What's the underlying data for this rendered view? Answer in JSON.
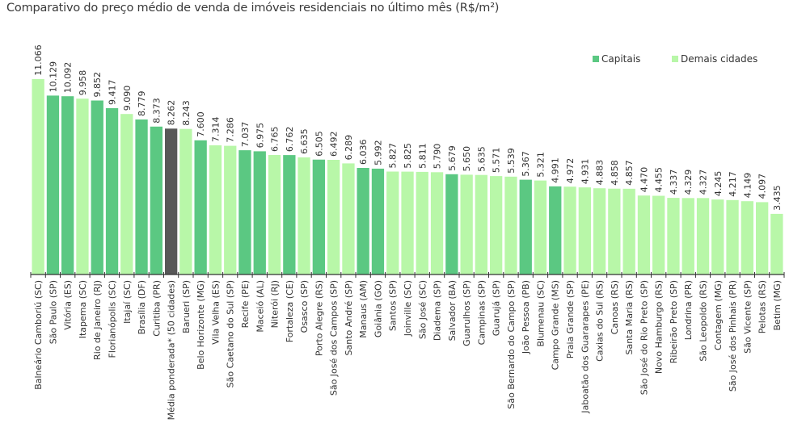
{
  "colors": {
    "capital": "#5bc882",
    "other": "#b8f7a8",
    "average": "#585858",
    "axis": "#333333",
    "text": "#333333"
  },
  "chart_data": {
    "type": "bar",
    "title": "Comparativo do preço médio de venda de imóveis residenciais no último mês (R$/m²)",
    "xlabel": "",
    "ylabel": "",
    "ylim": [
      0,
      12000
    ],
    "grid": false,
    "legend_position": "top-right",
    "legend": [
      {
        "key": "capital",
        "label": "Capitais"
      },
      {
        "key": "other",
        "label": "Demais cidades"
      }
    ],
    "bars": [
      {
        "label": "Balneário Camboriú (SC)",
        "value": 11066,
        "display": "11.066",
        "group": "other"
      },
      {
        "label": "São Paulo (SP)",
        "value": 10129,
        "display": "10.129",
        "group": "capital"
      },
      {
        "label": "Vitória (ES)",
        "value": 10092,
        "display": "10.092",
        "group": "capital"
      },
      {
        "label": "Itapema (SC)",
        "value": 9958,
        "display": "9.958",
        "group": "other"
      },
      {
        "label": "Rio de Janeiro (RJ)",
        "value": 9852,
        "display": "9.852",
        "group": "capital"
      },
      {
        "label": "Florianópolis (SC)",
        "value": 9417,
        "display": "9.417",
        "group": "capital"
      },
      {
        "label": "Itajaí (SC)",
        "value": 9090,
        "display": "9.090",
        "group": "other"
      },
      {
        "label": "Brasília (DF)",
        "value": 8779,
        "display": "8.779",
        "group": "capital"
      },
      {
        "label": "Curitiba (PR)",
        "value": 8373,
        "display": "8.373",
        "group": "capital"
      },
      {
        "label": "Média ponderada* (50 cidades)",
        "value": 8262,
        "display": "8.262",
        "group": "average"
      },
      {
        "label": "Barueri (SP)",
        "value": 8243,
        "display": "8.243",
        "group": "other"
      },
      {
        "label": "Belo Horizonte (MG)",
        "value": 7600,
        "display": "7.600",
        "group": "capital"
      },
      {
        "label": "Vila Velha (ES)",
        "value": 7314,
        "display": "7.314",
        "group": "other"
      },
      {
        "label": "São Caetano do Sul (SP)",
        "value": 7286,
        "display": "7.286",
        "group": "other"
      },
      {
        "label": "Recife (PE)",
        "value": 7037,
        "display": "7.037",
        "group": "capital"
      },
      {
        "label": "Maceió (AL)",
        "value": 6975,
        "display": "6.975",
        "group": "capital"
      },
      {
        "label": "Niterói (RJ)",
        "value": 6765,
        "display": "6.765",
        "group": "other"
      },
      {
        "label": "Fortaleza (CE)",
        "value": 6762,
        "display": "6.762",
        "group": "capital"
      },
      {
        "label": "Osasco (SP)",
        "value": 6635,
        "display": "6.635",
        "group": "other"
      },
      {
        "label": "Porto Alegre (RS)",
        "value": 6505,
        "display": "6.505",
        "group": "capital"
      },
      {
        "label": "São José dos Campos (SP)",
        "value": 6492,
        "display": "6.492",
        "group": "other"
      },
      {
        "label": "Santo André (SP)",
        "value": 6289,
        "display": "6.289",
        "group": "other"
      },
      {
        "label": "Manaus (AM)",
        "value": 6036,
        "display": "6.036",
        "group": "capital"
      },
      {
        "label": "Goiânia (GO)",
        "value": 5992,
        "display": "5.992",
        "group": "capital"
      },
      {
        "label": "Santos (SP)",
        "value": 5827,
        "display": "5.827",
        "group": "other"
      },
      {
        "label": "Joinville (SC)",
        "value": 5825,
        "display": "5.825",
        "group": "other"
      },
      {
        "label": "São José (SC)",
        "value": 5811,
        "display": "5.811",
        "group": "other"
      },
      {
        "label": "Diadema (SP)",
        "value": 5790,
        "display": "5.790",
        "group": "other"
      },
      {
        "label": "Salvador (BA)",
        "value": 5679,
        "display": "5.679",
        "group": "capital"
      },
      {
        "label": "Guarulhos (SP)",
        "value": 5650,
        "display": "5.650",
        "group": "other"
      },
      {
        "label": "Campinas (SP)",
        "value": 5635,
        "display": "5.635",
        "group": "other"
      },
      {
        "label": "Guarujá (SP)",
        "value": 5571,
        "display": "5.571",
        "group": "other"
      },
      {
        "label": "São Bernardo do Campo (SP)",
        "value": 5539,
        "display": "5.539",
        "group": "other"
      },
      {
        "label": "João Pessoa (PB)",
        "value": 5367,
        "display": "5.367",
        "group": "capital"
      },
      {
        "label": "Blumenau (SC)",
        "value": 5321,
        "display": "5.321",
        "group": "other"
      },
      {
        "label": "Campo Grande (MS)",
        "value": 4991,
        "display": "4.991",
        "group": "capital"
      },
      {
        "label": "Praia Grande (SP)",
        "value": 4972,
        "display": "4.972",
        "group": "other"
      },
      {
        "label": "Jaboatão dos Guararapes (PE)",
        "value": 4931,
        "display": "4.931",
        "group": "other"
      },
      {
        "label": "Caxias do Sul (RS)",
        "value": 4883,
        "display": "4.883",
        "group": "other"
      },
      {
        "label": "Canoas (RS)",
        "value": 4858,
        "display": "4.858",
        "group": "other"
      },
      {
        "label": "Santa Maria (RS)",
        "value": 4857,
        "display": "4.857",
        "group": "other"
      },
      {
        "label": "São José do Rio Preto (SP)",
        "value": 4470,
        "display": "4.470",
        "group": "other"
      },
      {
        "label": "Novo Hamburgo (RS)",
        "value": 4455,
        "display": "4.455",
        "group": "other"
      },
      {
        "label": "Ribeirão Preto (SP)",
        "value": 4337,
        "display": "4.337",
        "group": "other"
      },
      {
        "label": "Londrina (PR)",
        "value": 4329,
        "display": "4.329",
        "group": "other"
      },
      {
        "label": "São Leopoldo (RS)",
        "value": 4327,
        "display": "4.327",
        "group": "other"
      },
      {
        "label": "Contagem (MG)",
        "value": 4245,
        "display": "4.245",
        "group": "other"
      },
      {
        "label": "São José dos Pinhais (PR)",
        "value": 4217,
        "display": "4.217",
        "group": "other"
      },
      {
        "label": "São Vicente (SP)",
        "value": 4149,
        "display": "4.149",
        "group": "other"
      },
      {
        "label": "Pelotas (RS)",
        "value": 4097,
        "display": "4.097",
        "group": "other"
      },
      {
        "label": "Betim (MG)",
        "value": 3435,
        "display": "3.435",
        "group": "other"
      }
    ]
  }
}
